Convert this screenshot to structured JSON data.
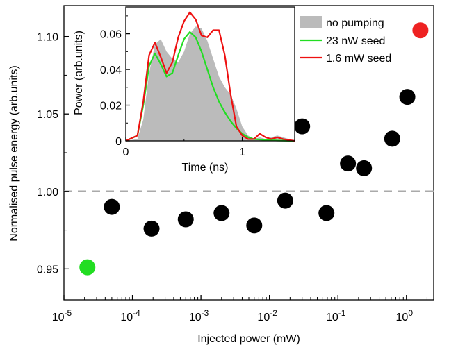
{
  "chart_data": [
    {
      "type": "scatter",
      "xlabel": "Injected power (mW)",
      "ylabel": "Normalised pulse energy (arb.units)",
      "x_scale": "log",
      "xlim": [
        1e-05,
        2.5
      ],
      "ylim": [
        0.93,
        1.12
      ],
      "x_ticks": [
        {
          "value": 1e-05,
          "base": "10",
          "exp": "-5"
        },
        {
          "value": 0.0001,
          "base": "10",
          "exp": "-4"
        },
        {
          "value": 0.001,
          "base": "10",
          "exp": "-3"
        },
        {
          "value": 0.01,
          "base": "10",
          "exp": "-2"
        },
        {
          "value": 0.1,
          "base": "10",
          "exp": "-1"
        },
        {
          "value": 1,
          "base": "10",
          "exp": "0"
        }
      ],
      "y_ticks": [
        {
          "value": 0.95,
          "label": "0.95"
        },
        {
          "value": 1.0,
          "label": "1.00"
        },
        {
          "value": 1.05,
          "label": "1.05"
        },
        {
          "value": 1.1,
          "label": "1.10"
        }
      ],
      "reference_line": {
        "y": 1.0,
        "color": "#aaaaaa",
        "style": "dashed"
      },
      "points": [
        {
          "x": 2.2e-05,
          "y": 0.951,
          "color": "#22dd22"
        },
        {
          "x": 5e-05,
          "y": 0.99,
          "color": "#000000"
        },
        {
          "x": 0.00019,
          "y": 0.976,
          "color": "#000000"
        },
        {
          "x": 0.0006,
          "y": 0.982,
          "color": "#000000"
        },
        {
          "x": 0.002,
          "y": 0.986,
          "color": "#000000"
        },
        {
          "x": 0.006,
          "y": 0.978,
          "color": "#000000"
        },
        {
          "x": 0.017,
          "y": 0.994,
          "color": "#000000"
        },
        {
          "x": 0.03,
          "y": 1.042,
          "color": "#000000"
        },
        {
          "x": 0.068,
          "y": 0.986,
          "color": "#000000"
        },
        {
          "x": 0.14,
          "y": 1.018,
          "color": "#000000"
        },
        {
          "x": 0.24,
          "y": 1.015,
          "color": "#000000"
        },
        {
          "x": 0.62,
          "y": 1.034,
          "color": "#000000"
        },
        {
          "x": 1.03,
          "y": 1.061,
          "color": "#000000"
        },
        {
          "x": 1.6,
          "y": 1.104,
          "color": "#ee2222"
        }
      ]
    },
    {
      "type": "line",
      "xlabel": "Time (ns)",
      "ylabel": "Power (arb.units)",
      "xlim": [
        0,
        1.45
      ],
      "ylim": [
        0,
        0.075
      ],
      "x_ticks": [
        {
          "value": 0,
          "label": "0"
        },
        {
          "value": 1,
          "label": "1"
        }
      ],
      "y_ticks": [
        {
          "value": 0,
          "label": "0"
        },
        {
          "value": 0.02,
          "label": "0.02"
        },
        {
          "value": 0.04,
          "label": "0.04"
        },
        {
          "value": 0.06,
          "label": "0.06"
        }
      ],
      "series": [
        {
          "name": "no pumping",
          "kind": "area",
          "color": "#bbbbbb",
          "x": [
            0,
            0.1,
            0.15,
            0.2,
            0.25,
            0.3,
            0.35,
            0.4,
            0.45,
            0.5,
            0.55,
            0.6,
            0.65,
            0.7,
            0.75,
            0.8,
            0.85,
            0.9,
            0.95,
            1.0,
            1.05,
            1.1,
            1.15,
            1.2,
            1.3,
            1.4,
            1.45
          ],
          "y": [
            0,
            0.001,
            0.012,
            0.038,
            0.054,
            0.057,
            0.05,
            0.046,
            0.044,
            0.05,
            0.06,
            0.064,
            0.063,
            0.056,
            0.046,
            0.036,
            0.03,
            0.026,
            0.018,
            0.008,
            0.003,
            0.001,
            0.002,
            0.001,
            0.003,
            0.001,
            0
          ]
        },
        {
          "name": "23 nW seed",
          "kind": "line",
          "color": "#22dd22",
          "x": [
            0,
            0.1,
            0.15,
            0.2,
            0.25,
            0.3,
            0.35,
            0.4,
            0.45,
            0.5,
            0.55,
            0.6,
            0.65,
            0.7,
            0.75,
            0.8,
            0.85,
            0.9,
            0.95,
            1.0,
            1.05,
            1.1,
            1.2,
            1.3,
            1.45
          ],
          "y": [
            0,
            0.003,
            0.02,
            0.042,
            0.049,
            0.043,
            0.036,
            0.038,
            0.048,
            0.057,
            0.061,
            0.058,
            0.05,
            0.04,
            0.03,
            0.022,
            0.016,
            0.011,
            0.007,
            0.004,
            0.002,
            0.001,
            0.0005,
            0.0002,
            0
          ]
        },
        {
          "name": "1.6 mW seed",
          "kind": "line",
          "color": "#ee1111",
          "x": [
            0,
            0.1,
            0.15,
            0.2,
            0.25,
            0.3,
            0.35,
            0.4,
            0.45,
            0.5,
            0.55,
            0.6,
            0.65,
            0.7,
            0.75,
            0.8,
            0.85,
            0.9,
            0.95,
            1.0,
            1.05,
            1.1,
            1.15,
            1.2,
            1.25,
            1.3,
            1.35,
            1.4,
            1.45
          ],
          "y": [
            0,
            0.003,
            0.022,
            0.048,
            0.055,
            0.047,
            0.038,
            0.044,
            0.058,
            0.067,
            0.072,
            0.068,
            0.059,
            0.058,
            0.062,
            0.062,
            0.048,
            0.026,
            0.008,
            0.003,
            0.001,
            0.001,
            0.004,
            0.002,
            0.001,
            0.002,
            0.001,
            0.0005,
            0
          ]
        }
      ],
      "legend": {
        "position": "right of inset"
      }
    }
  ]
}
